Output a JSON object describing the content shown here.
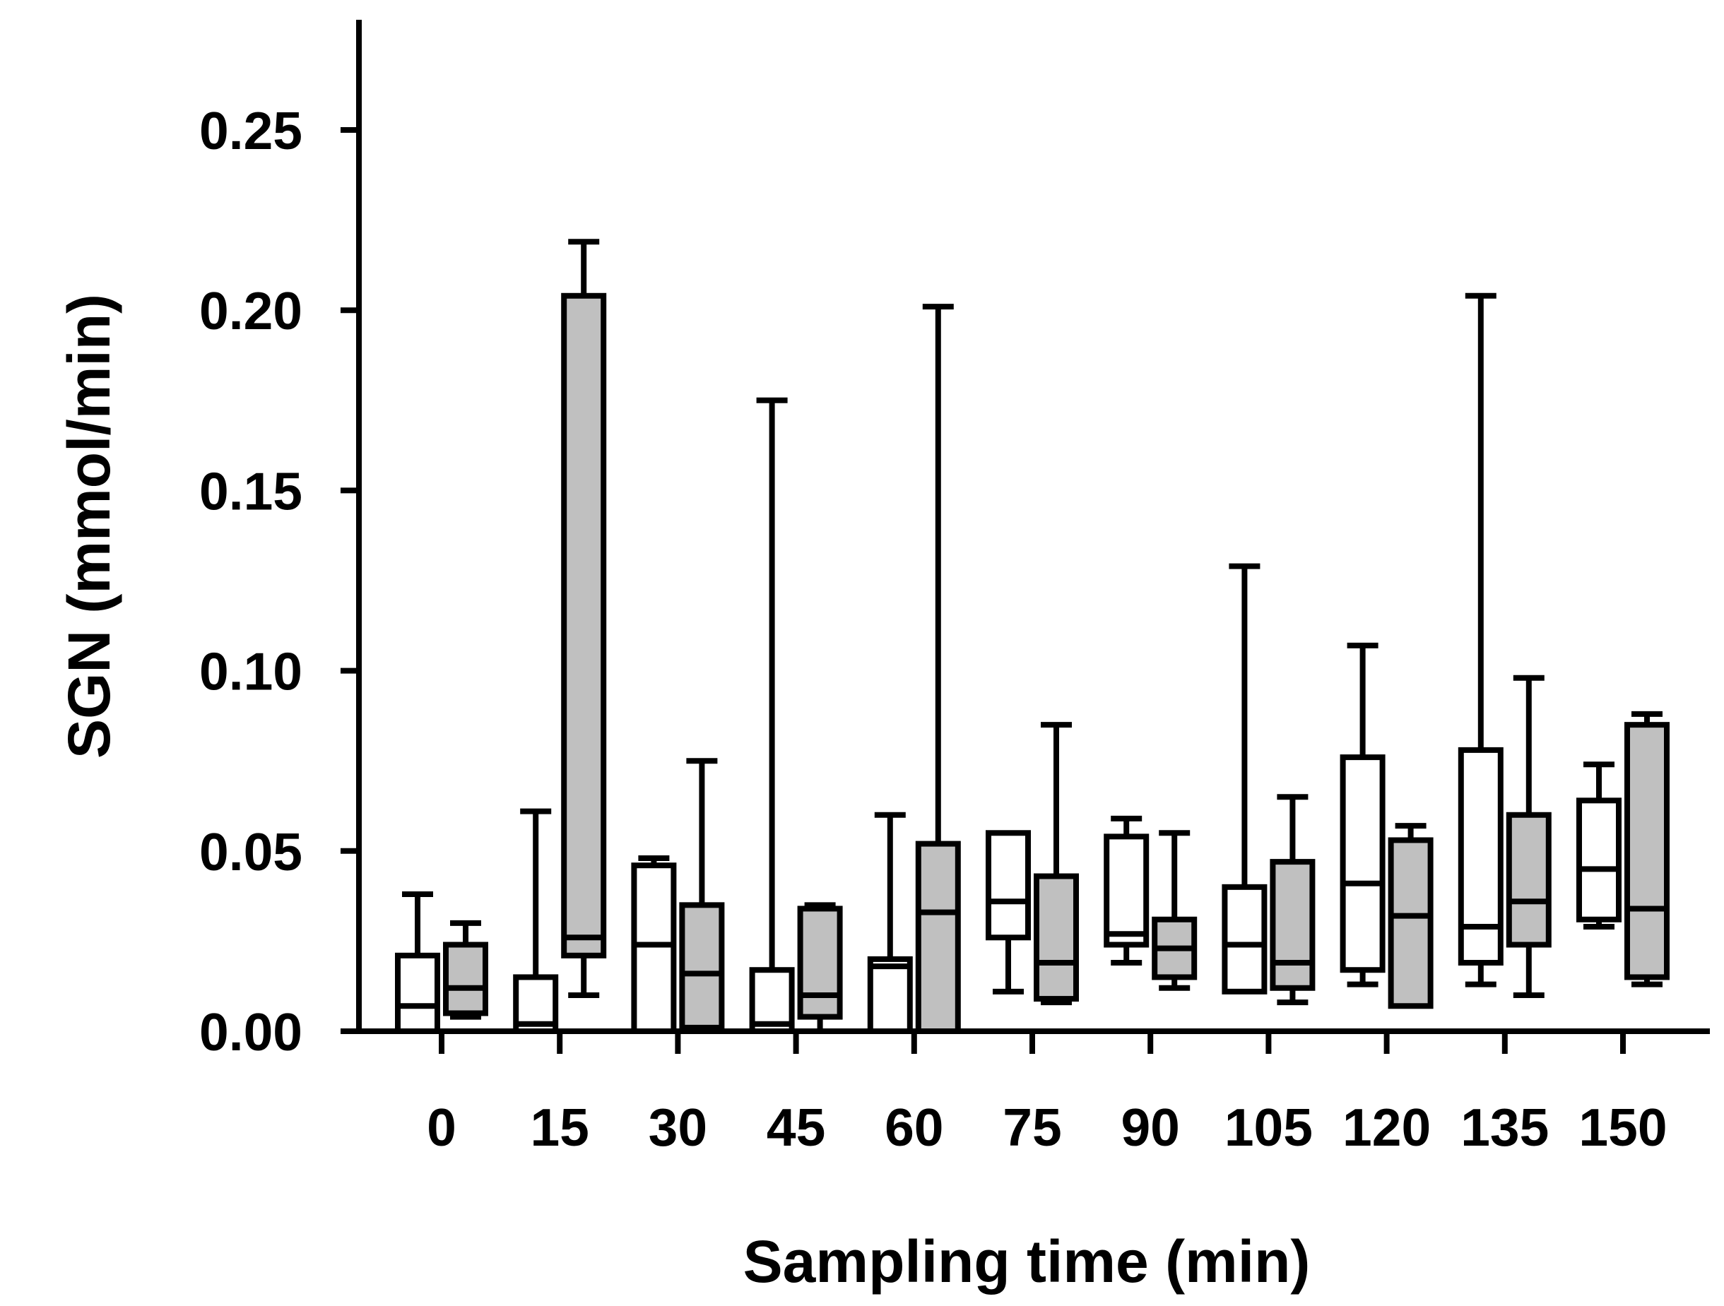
{
  "chart_data": {
    "type": "boxplot",
    "title": "",
    "xlabel": "Sampling time (min)",
    "ylabel": "SGN (mmol/min)",
    "ylim": [
      0,
      0.28
    ],
    "yticks": [
      0.0,
      0.05,
      0.1,
      0.15,
      0.2,
      0.25
    ],
    "ytick_labels": [
      "0.00",
      "0.05",
      "0.10",
      "0.15",
      "0.20",
      "0.25"
    ],
    "categories": [
      "0",
      "15",
      "30",
      "45",
      "60",
      "75",
      "90",
      "105",
      "120",
      "135",
      "150"
    ],
    "colors": {
      "open": "#ffffff",
      "shaded": "#c0c0c0",
      "stroke": "#000000"
    },
    "series": [
      {
        "name": "open",
        "boxes": [
          {
            "min": 0.0,
            "q1": 0.0,
            "median": 0.007,
            "q3": 0.021,
            "max": 0.038
          },
          {
            "min": 0.0,
            "q1": 0.0,
            "median": 0.002,
            "q3": 0.015,
            "max": 0.061
          },
          {
            "min": 0.0,
            "q1": 0.0,
            "median": 0.024,
            "q3": 0.046,
            "max": 0.048
          },
          {
            "min": 0.0,
            "q1": 0.0,
            "median": 0.002,
            "q3": 0.017,
            "max": 0.175
          },
          {
            "min": 0.0,
            "q1": 0.0,
            "median": 0.018,
            "q3": 0.02,
            "max": 0.06
          },
          {
            "min": 0.011,
            "q1": 0.026,
            "median": 0.036,
            "q3": 0.055,
            "max": 0.055
          },
          {
            "min": 0.019,
            "q1": 0.024,
            "median": 0.027,
            "q3": 0.054,
            "max": 0.059
          },
          {
            "min": 0.011,
            "q1": 0.011,
            "median": 0.024,
            "q3": 0.04,
            "max": 0.129
          },
          {
            "min": 0.013,
            "q1": 0.017,
            "median": 0.041,
            "q3": 0.076,
            "max": 0.107
          },
          {
            "min": 0.013,
            "q1": 0.019,
            "median": 0.029,
            "q3": 0.078,
            "max": 0.204
          },
          {
            "min": 0.029,
            "q1": 0.031,
            "median": 0.045,
            "q3": 0.064,
            "max": 0.074
          }
        ]
      },
      {
        "name": "shaded",
        "boxes": [
          {
            "min": 0.004,
            "q1": 0.005,
            "median": 0.012,
            "q3": 0.024,
            "max": 0.03
          },
          {
            "min": 0.01,
            "q1": 0.021,
            "median": 0.026,
            "q3": 0.204,
            "max": 0.219
          },
          {
            "min": 0.0,
            "q1": 0.001,
            "median": 0.016,
            "q3": 0.035,
            "max": 0.075
          },
          {
            "min": 0.0,
            "q1": 0.004,
            "median": 0.01,
            "q3": 0.034,
            "max": 0.035
          },
          {
            "min": 0.0,
            "q1": 0.0,
            "median": 0.033,
            "q3": 0.052,
            "max": 0.201
          },
          {
            "min": 0.008,
            "q1": 0.009,
            "median": 0.019,
            "q3": 0.043,
            "max": 0.085
          },
          {
            "min": 0.012,
            "q1": 0.015,
            "median": 0.023,
            "q3": 0.031,
            "max": 0.055
          },
          {
            "min": 0.008,
            "q1": 0.012,
            "median": 0.019,
            "q3": 0.047,
            "max": 0.065
          },
          {
            "min": 0.007,
            "q1": 0.007,
            "median": 0.032,
            "q3": 0.053,
            "max": 0.057
          },
          {
            "min": 0.01,
            "q1": 0.024,
            "median": 0.036,
            "q3": 0.06,
            "max": 0.098
          },
          {
            "min": 0.013,
            "q1": 0.015,
            "median": 0.034,
            "q3": 0.085,
            "max": 0.088
          }
        ]
      }
    ]
  }
}
